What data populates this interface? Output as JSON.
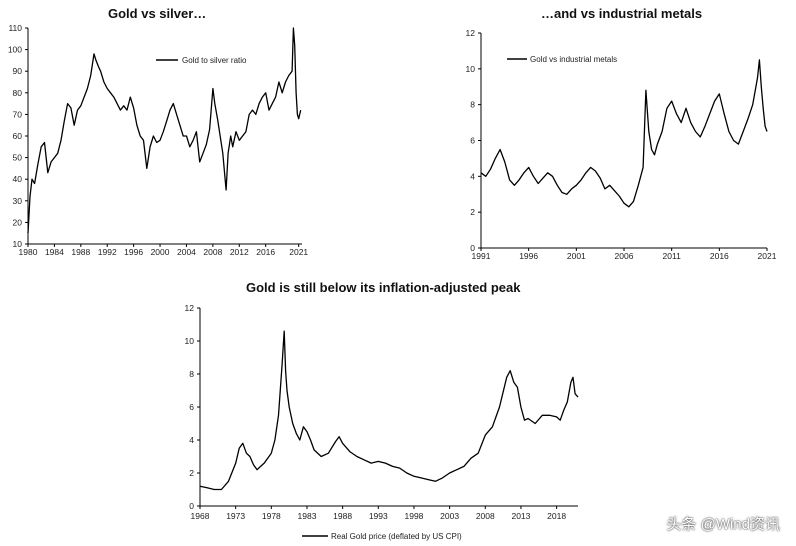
{
  "chart_data": [
    {
      "id": "c1",
      "type": "line",
      "title": "Gold vs silver…",
      "xlabel": "",
      "ylabel": "",
      "xlim": [
        1980,
        2021.5
      ],
      "ylim": [
        10,
        110
      ],
      "xticks": [
        1980,
        1984,
        1988,
        1992,
        1996,
        2000,
        2004,
        2008,
        2012,
        2016,
        2021
      ],
      "xtick_labels": [
        "1980",
        "1984",
        "1988",
        "1992",
        "1996",
        "2000",
        "2004",
        "2008",
        "2012",
        "2016",
        "2021"
      ],
      "yticks": [
        10,
        20,
        30,
        40,
        50,
        60,
        70,
        80,
        90,
        100,
        110
      ],
      "legend": "top-center",
      "grid": false,
      "series": [
        {
          "name": "Gold to silver ratio",
          "x": [
            1980,
            1980.3,
            1980.6,
            1981,
            1981.5,
            1982,
            1982.5,
            1983,
            1983.5,
            1984,
            1984.5,
            1985,
            1985.5,
            1986,
            1986.5,
            1987,
            1987.5,
            1988,
            1988.5,
            1989,
            1989.5,
            1990,
            1990.3,
            1990.7,
            1991,
            1991.5,
            1992,
            1992.5,
            1993,
            1993.5,
            1994,
            1994.5,
            1995,
            1995.5,
            1996,
            1996.5,
            1997,
            1997.5,
            1998,
            1998.5,
            1999,
            1999.5,
            2000,
            2000.5,
            2001,
            2001.5,
            2002,
            2002.5,
            2003,
            2003.5,
            2004,
            2004.5,
            2005,
            2005.5,
            2006,
            2006.5,
            2007,
            2007.5,
            2008,
            2008.3,
            2008.7,
            2009,
            2009.5,
            2010,
            2010.3,
            2010.7,
            2011,
            2011.5,
            2012,
            2012.5,
            2013,
            2013.5,
            2014,
            2014.5,
            2015,
            2015.5,
            2016,
            2016.5,
            2017,
            2017.5,
            2018,
            2018.5,
            2019,
            2019.5,
            2020,
            2020.2,
            2020.4,
            2020.6,
            2020.8,
            2021,
            2021.3
          ],
          "y": [
            15,
            32,
            40,
            38,
            47,
            55,
            57,
            43,
            48,
            50,
            52,
            58,
            67,
            75,
            73,
            65,
            72,
            74,
            78,
            82,
            88,
            98,
            95,
            92,
            90,
            85,
            82,
            80,
            78,
            75,
            72,
            74,
            72,
            78,
            73,
            65,
            60,
            58,
            45,
            55,
            60,
            57,
            58,
            62,
            67,
            72,
            75,
            70,
            65,
            60,
            60,
            55,
            58,
            62,
            48,
            52,
            56,
            63,
            82,
            75,
            68,
            62,
            52,
            35,
            52,
            60,
            55,
            62,
            58,
            60,
            62,
            70,
            72,
            70,
            75,
            78,
            80,
            72,
            75,
            78,
            85,
            80,
            85,
            88,
            90,
            110,
            102,
            80,
            70,
            68,
            72
          ]
        }
      ]
    },
    {
      "id": "c2",
      "type": "line",
      "title": "…and vs industrial metals",
      "xlabel": "",
      "ylabel": "",
      "xlim": [
        1991,
        2021
      ],
      "ylim": [
        0,
        12
      ],
      "xticks": [
        1991,
        1996,
        2001,
        2006,
        2011,
        2016,
        2021
      ],
      "xtick_labels": [
        "1991",
        "1996",
        "2001",
        "2006",
        "2011",
        "2016",
        "2021"
      ],
      "yticks": [
        0,
        2,
        4,
        6,
        8,
        10,
        12
      ],
      "legend": "top-left",
      "grid": false,
      "series": [
        {
          "name": "Gold vs industrial metals",
          "x": [
            1991,
            1991.5,
            1992,
            1992.5,
            1993,
            1993.5,
            1994,
            1994.5,
            1995,
            1995.5,
            1996,
            1996.5,
            1997,
            1997.5,
            1998,
            1998.5,
            1999,
            1999.5,
            2000,
            2000.5,
            2001,
            2001.5,
            2002,
            2002.5,
            2003,
            2003.5,
            2004,
            2004.5,
            2005,
            2005.5,
            2006,
            2006.5,
            2007,
            2007.5,
            2008,
            2008.3,
            2008.6,
            2008.9,
            2009.2,
            2009.5,
            2010,
            2010.5,
            2011,
            2011.5,
            2012,
            2012.5,
            2013,
            2013.5,
            2014,
            2014.5,
            2015,
            2015.5,
            2016,
            2016.5,
            2017,
            2017.5,
            2018,
            2018.5,
            2019,
            2019.5,
            2020,
            2020.2,
            2020.4,
            2020.6,
            2020.8,
            2021
          ],
          "y": [
            4.2,
            4.0,
            4.4,
            5.0,
            5.5,
            4.8,
            3.8,
            3.5,
            3.8,
            4.2,
            4.5,
            4.0,
            3.6,
            3.9,
            4.2,
            4.0,
            3.5,
            3.1,
            3.0,
            3.3,
            3.5,
            3.8,
            4.2,
            4.5,
            4.3,
            3.9,
            3.3,
            3.5,
            3.2,
            2.9,
            2.5,
            2.3,
            2.6,
            3.5,
            4.5,
            8.8,
            6.5,
            5.5,
            5.2,
            5.8,
            6.5,
            7.8,
            8.2,
            7.5,
            7.0,
            7.8,
            7.0,
            6.5,
            6.2,
            6.8,
            7.5,
            8.2,
            8.6,
            7.5,
            6.5,
            6.0,
            5.8,
            6.5,
            7.2,
            8.0,
            9.5,
            10.5,
            9.0,
            7.8,
            6.8,
            6.5
          ]
        }
      ]
    },
    {
      "id": "c3",
      "type": "line",
      "title": "Gold is still below its inflation-adjusted peak",
      "xlabel": "",
      "ylabel": "",
      "xlim": [
        1968,
        2021
      ],
      "ylim": [
        0,
        12
      ],
      "xticks": [
        1968,
        1973,
        1978,
        1983,
        1988,
        1993,
        1998,
        2003,
        2008,
        2013,
        2018
      ],
      "xtick_labels": [
        "1968",
        "1973",
        "1978",
        "1983",
        "1988",
        "1993",
        "1998",
        "2003",
        "2008",
        "2013",
        "2018"
      ],
      "yticks": [
        0,
        2,
        4,
        6,
        8,
        10,
        12
      ],
      "legend": "bottom-center",
      "grid": false,
      "series": [
        {
          "name": "Real Gold price (deflated by US CPI)",
          "x": [
            1968,
            1969,
            1970,
            1971,
            1972,
            1973,
            1973.5,
            1974,
            1974.5,
            1975,
            1975.5,
            1976,
            1976.5,
            1977,
            1978,
            1978.5,
            1979,
            1979.5,
            1979.8,
            1980,
            1980.2,
            1980.5,
            1981,
            1981.5,
            1982,
            1982.5,
            1983,
            1983.5,
            1984,
            1985,
            1986,
            1987,
            1987.5,
            1988,
            1989,
            1990,
            1991,
            1992,
            1993,
            1994,
            1995,
            1996,
            1997,
            1998,
            1999,
            2000,
            2001,
            2002,
            2003,
            2004,
            2005,
            2006,
            2007,
            2008,
            2009,
            2010,
            2011,
            2011.5,
            2012,
            2012.5,
            2013,
            2013.5,
            2014,
            2015,
            2016,
            2017,
            2018,
            2018.5,
            2019,
            2019.5,
            2020,
            2020.3,
            2020.6,
            2021
          ],
          "y": [
            1.2,
            1.1,
            1.0,
            1.0,
            1.5,
            2.6,
            3.5,
            3.8,
            3.2,
            3.0,
            2.5,
            2.2,
            2.4,
            2.6,
            3.2,
            4.0,
            5.5,
            8.5,
            10.6,
            8.2,
            7.0,
            6.0,
            5.0,
            4.4,
            4.0,
            4.8,
            4.5,
            4.0,
            3.4,
            3.0,
            3.2,
            3.9,
            4.2,
            3.8,
            3.3,
            3.0,
            2.8,
            2.6,
            2.7,
            2.6,
            2.4,
            2.3,
            2.0,
            1.8,
            1.7,
            1.6,
            1.5,
            1.7,
            2.0,
            2.2,
            2.4,
            2.9,
            3.2,
            4.3,
            4.8,
            6.0,
            7.8,
            8.2,
            7.5,
            7.2,
            6.0,
            5.2,
            5.3,
            5.0,
            5.5,
            5.5,
            5.4,
            5.2,
            5.8,
            6.3,
            7.5,
            7.8,
            6.8,
            6.6
          ]
        }
      ]
    }
  ],
  "watermark": {
    "text": "头条 @Wind资讯"
  }
}
